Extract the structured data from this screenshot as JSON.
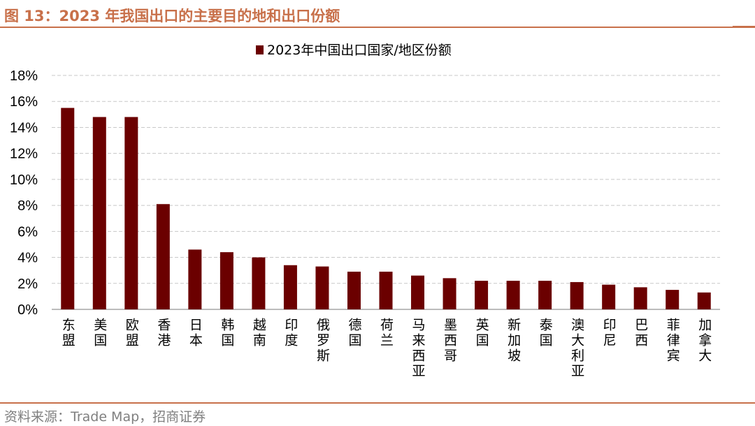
{
  "header": {
    "title": "图 13：2023 年我国出口的主要目的地和出口份额"
  },
  "footer": {
    "source": "资料来源：Trade Map，招商证券"
  },
  "colors": {
    "accent": "#c8704a",
    "bar": "#6b0000",
    "grid": "#c8c8c8",
    "source_text": "#7f7f7f"
  },
  "chart_data": {
    "type": "bar",
    "legend": {
      "position": "top-center"
    },
    "grid": true,
    "ylim": [
      0,
      18
    ],
    "yticks": [
      "0%",
      "2%",
      "4%",
      "6%",
      "8%",
      "10%",
      "12%",
      "14%",
      "16%",
      "18%"
    ],
    "categories": [
      "东盟",
      "美国",
      "欧盟",
      "香港",
      "日本",
      "韩国",
      "越南",
      "印度",
      "俄罗斯",
      "德国",
      "荷兰",
      "马来西亚",
      "墨西哥",
      "英国",
      "新加坡",
      "泰国",
      "澳大利亚",
      "印尼",
      "巴西",
      "菲律宾",
      "加拿大"
    ],
    "series": [
      {
        "name": "2023年中国出口国家/地区份额",
        "values": [
          15.5,
          14.8,
          14.8,
          8.1,
          4.6,
          4.4,
          4.0,
          3.4,
          3.3,
          2.9,
          2.9,
          2.6,
          2.4,
          2.2,
          2.2,
          2.2,
          2.1,
          1.9,
          1.7,
          1.5,
          1.3
        ]
      }
    ]
  }
}
